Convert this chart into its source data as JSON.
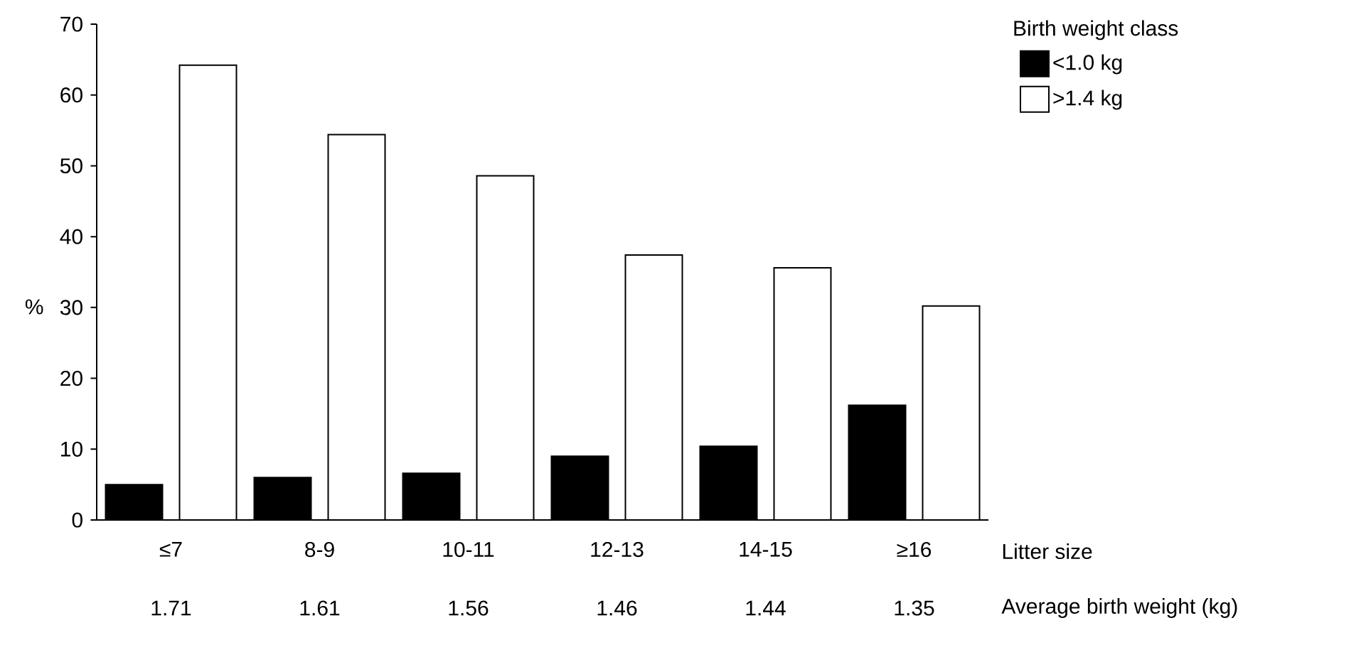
{
  "chart_data": {
    "type": "bar",
    "ylabel": "%",
    "xlabel": "Litter size",
    "legend_title": "Birth weight class",
    "categories": [
      "≤7",
      "8-9",
      "10-11",
      "12-13",
      "14-15",
      "≥16"
    ],
    "series": [
      {
        "name": "<1.0 kg",
        "color": "#000000",
        "values": [
          5.0,
          6.0,
          6.6,
          9.0,
          10.4,
          16.2
        ]
      },
      {
        "name": ">1.4 kg",
        "color": "#ffffff",
        "values": [
          64.2,
          54.4,
          48.6,
          37.4,
          35.6,
          30.2
        ]
      }
    ],
    "annotations": [
      "Average birth weight (kg)",
      "1.71",
      "1.61",
      "1.56",
      "1.46",
      "1.44",
      "1.35"
    ],
    "ylim": [
      0,
      70
    ],
    "yticks": [
      0,
      10,
      20,
      30,
      40,
      50,
      60,
      70
    ],
    "grid": false,
    "legend": "top right"
  }
}
